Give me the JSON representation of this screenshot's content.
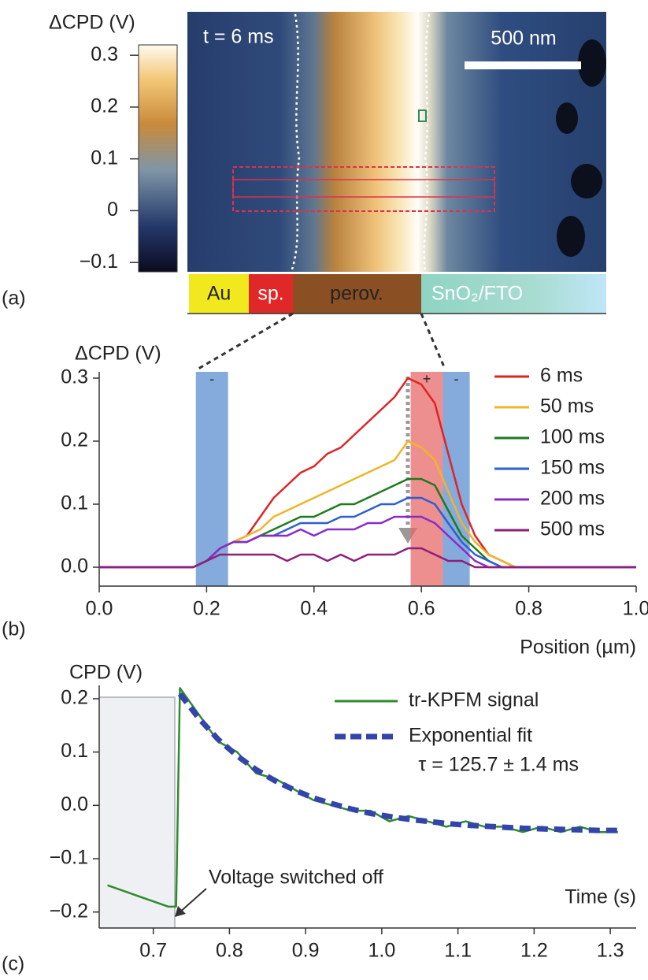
{
  "chart_data": [
    {
      "type": "image",
      "label": "(a)",
      "colorbar_label": "ΔCPD (V)",
      "clim": [
        -0.118,
        0.32
      ],
      "colorbar_ticks": [
        {
          "value": -0.1,
          "label": "−0.1"
        },
        0,
        0.1,
        0.2,
        0.3
      ],
      "annotation": "t = 6 ms",
      "scale_bar": "500 nm",
      "layers": [
        "Au",
        "sp.",
        "perov.",
        "SnO₂/FTO"
      ]
    },
    {
      "type": "line",
      "label": "(b)",
      "ylabel": "ΔCPD (V)",
      "xlabel": "Position (µm)",
      "x": [
        0,
        0.025,
        0.05,
        0.075,
        0.1,
        0.125,
        0.15,
        0.175,
        0.2,
        0.225,
        0.25,
        0.275,
        0.3,
        0.325,
        0.35,
        0.375,
        0.4,
        0.425,
        0.45,
        0.475,
        0.5,
        0.525,
        0.55,
        0.575,
        0.6,
        0.625,
        0.65,
        0.675,
        0.7,
        0.725,
        0.75,
        0.775,
        0.8,
        0.825,
        0.85,
        0.875,
        0.9,
        0.925,
        0.95,
        0.975,
        1.0
      ],
      "series": [
        {
          "name": "6 ms",
          "color": "#e02424",
          "values": [
            0,
            0,
            0,
            0,
            0,
            0,
            0,
            0,
            0.01,
            0.03,
            0.04,
            0.05,
            0.08,
            0.11,
            0.13,
            0.15,
            0.16,
            0.18,
            0.19,
            0.21,
            0.23,
            0.25,
            0.27,
            0.3,
            0.29,
            0.26,
            0.18,
            0.1,
            0.05,
            0.02,
            0.01,
            0,
            0,
            0,
            0,
            0,
            0,
            0,
            0,
            0,
            0
          ]
        },
        {
          "name": "50 ms",
          "color": "#f0b428",
          "values": [
            0,
            0,
            0,
            0,
            0,
            0,
            0,
            0,
            0.01,
            0.03,
            0.04,
            0.05,
            0.06,
            0.08,
            0.09,
            0.1,
            0.11,
            0.12,
            0.13,
            0.14,
            0.15,
            0.16,
            0.17,
            0.2,
            0.19,
            0.17,
            0.12,
            0.07,
            0.04,
            0.02,
            0.01,
            0,
            0,
            0,
            0,
            0,
            0,
            0,
            0,
            0,
            0
          ]
        },
        {
          "name": "100 ms",
          "color": "#1f7a1f",
          "values": [
            0,
            0,
            0,
            0,
            0,
            0,
            0,
            0,
            0.01,
            0.03,
            0.04,
            0.04,
            0.05,
            0.06,
            0.07,
            0.08,
            0.08,
            0.09,
            0.1,
            0.1,
            0.11,
            0.12,
            0.13,
            0.14,
            0.14,
            0.13,
            0.09,
            0.05,
            0.03,
            0.01,
            0,
            0,
            0,
            0,
            0,
            0,
            0,
            0,
            0,
            0,
            0
          ]
        },
        {
          "name": "150 ms",
          "color": "#2f5fd0",
          "values": [
            0,
            0,
            0,
            0,
            0,
            0,
            0,
            0,
            0.01,
            0.03,
            0.04,
            0.04,
            0.05,
            0.05,
            0.06,
            0.07,
            0.07,
            0.07,
            0.08,
            0.08,
            0.09,
            0.1,
            0.1,
            0.11,
            0.11,
            0.1,
            0.07,
            0.04,
            0.02,
            0.01,
            0,
            0,
            0,
            0,
            0,
            0,
            0,
            0,
            0,
            0,
            0
          ]
        },
        {
          "name": "200 ms",
          "color": "#8a2bc8",
          "values": [
            0,
            0,
            0,
            0,
            0,
            0,
            0,
            0,
            0.01,
            0.03,
            0.04,
            0.04,
            0.05,
            0.05,
            0.05,
            0.06,
            0.05,
            0.06,
            0.06,
            0.06,
            0.07,
            0.07,
            0.08,
            0.08,
            0.08,
            0.07,
            0.05,
            0.03,
            0.01,
            0,
            0,
            0,
            0,
            0,
            0,
            0,
            0,
            0,
            0,
            0,
            0
          ]
        },
        {
          "name": "500 ms",
          "color": "#8e1f7a",
          "values": [
            0,
            0,
            0,
            0,
            0,
            0,
            0,
            0,
            0.01,
            0.02,
            0.02,
            0.02,
            0.02,
            0.02,
            0.01,
            0.02,
            0.02,
            0.01,
            0.02,
            0.01,
            0.02,
            0.02,
            0.02,
            0.03,
            0.03,
            0.02,
            0.01,
            0.01,
            0,
            0,
            0,
            0,
            0,
            0,
            0,
            0,
            0,
            0,
            0,
            0,
            0
          ]
        }
      ],
      "xlim": [
        0,
        1.0
      ],
      "xticks": [
        {
          "value": 0,
          "label": "0.0"
        },
        0.2,
        0.4,
        0.6,
        0.8,
        {
          "value": 1.0,
          "label": "1.0"
        }
      ],
      "ylim": [
        -0.03,
        0.31
      ],
      "yticks": [
        {
          "value": 0,
          "label": "0.0"
        },
        0.1,
        0.2,
        0.3
      ],
      "bands": [
        {
          "x": [
            0.18,
            0.24
          ],
          "color": "#5b8fd0",
          "label": "-"
        },
        {
          "x": [
            0.58,
            0.64
          ],
          "color": "#e86a6a",
          "label": "+"
        },
        {
          "x": [
            0.64,
            0.69
          ],
          "color": "#5b8fd0",
          "label": "-"
        }
      ]
    },
    {
      "type": "line",
      "label": "(c)",
      "ylabel": "CPD (V)",
      "xlabel": "Time (s)",
      "x": [
        0.64,
        0.66,
        0.68,
        0.7,
        0.72,
        0.73,
        0.735,
        0.76,
        0.785,
        0.81,
        0.835,
        0.86,
        0.885,
        0.91,
        0.935,
        0.96,
        0.985,
        1.01,
        1.035,
        1.06,
        1.085,
        1.11,
        1.135,
        1.16,
        1.185,
        1.21,
        1.235,
        1.26,
        1.285,
        1.31
      ],
      "series": [
        {
          "name": "tr-KPFM signal",
          "color": "#2e8b2e",
          "values": [
            -0.15,
            -0.16,
            -0.17,
            -0.18,
            -0.19,
            -0.19,
            0.22,
            0.17,
            0.12,
            0.1,
            0.06,
            0.05,
            0.03,
            0.01,
            0.0,
            -0.01,
            -0.01,
            -0.03,
            -0.02,
            -0.03,
            -0.04,
            -0.03,
            -0.04,
            -0.04,
            -0.05,
            -0.04,
            -0.05,
            -0.04,
            -0.05,
            -0.05
          ]
        },
        {
          "name": "Exponential fit",
          "color": "#3344aa",
          "dashed": true,
          "values": [
            null,
            null,
            null,
            null,
            null,
            null,
            0.209,
            0.163,
            0.124,
            0.093,
            0.067,
            0.046,
            0.029,
            0.014,
            0.003,
            -0.007,
            -0.015,
            -0.021,
            -0.026,
            -0.03,
            -0.034,
            -0.037,
            -0.039,
            -0.041,
            -0.043,
            -0.044,
            -0.045,
            -0.046,
            -0.047,
            -0.047
          ]
        }
      ],
      "xlim": [
        0.629,
        1.334
      ],
      "xticks": [
        0.7,
        0.8,
        0.9,
        {
          "value": 1.0,
          "label": "1.0"
        },
        1.1,
        1.2,
        1.3
      ],
      "ylim": [
        -0.23,
        0.225
      ],
      "yticks": [
        {
          "value": -0.2,
          "label": "−0.2"
        },
        {
          "value": -0.1,
          "label": "−0.1"
        },
        {
          "value": 0,
          "label": "0.0"
        },
        0.1,
        0.2
      ],
      "annotations": [
        "τ = 125.7 ± 1.4 ms",
        "Voltage switched off"
      ]
    }
  ]
}
